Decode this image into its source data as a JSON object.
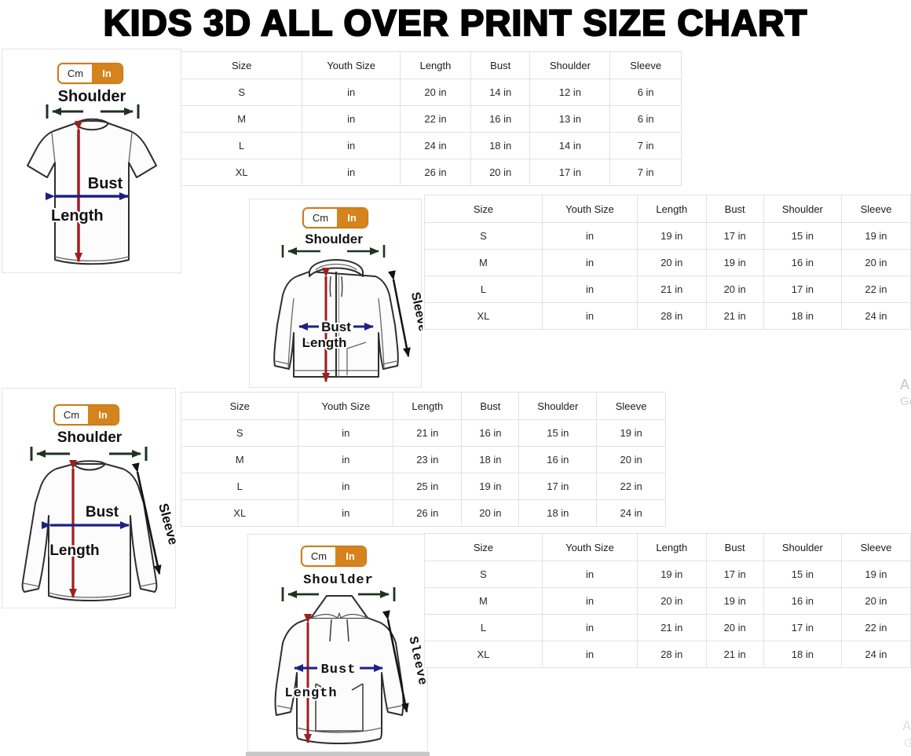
{
  "title": "KIDS 3D ALL OVER PRINT SIZE CHART",
  "unit_toggle": {
    "cm_label": "Cm",
    "in_label": "In",
    "selected": "In"
  },
  "table_headers": [
    "Size",
    "Youth Size",
    "Length",
    "Bust",
    "Shoulder",
    "Sleeve"
  ],
  "diagram_labels": {
    "shoulder": "Shoulder",
    "bust": "Bust",
    "length": "Length",
    "sleeve": "Sleeve"
  },
  "sections": [
    {
      "garment": "kids-tshirt",
      "rows": [
        [
          "S",
          "in",
          "20 in",
          "14 in",
          "12 in",
          "6 in"
        ],
        [
          "M",
          "in",
          "22 in",
          "16 in",
          "13 in",
          "6 in"
        ],
        [
          "L",
          "in",
          "24 in",
          "18 in",
          "14 in",
          "7 in"
        ],
        [
          "XL",
          "in",
          "26 in",
          "20 in",
          "17 in",
          "7 in"
        ]
      ]
    },
    {
      "garment": "kids-zip-hoodie",
      "rows": [
        [
          "S",
          "in",
          "19 in",
          "17 in",
          "15 in",
          "19 in"
        ],
        [
          "M",
          "in",
          "20 in",
          "19 in",
          "16 in",
          "20 in"
        ],
        [
          "L",
          "in",
          "21 in",
          "20 in",
          "17 in",
          "22 in"
        ],
        [
          "XL",
          "in",
          "28 in",
          "21 in",
          "18 in",
          "24 in"
        ]
      ]
    },
    {
      "garment": "kids-long-sleeve-shirt",
      "rows": [
        [
          "S",
          "in",
          "21 in",
          "16 in",
          "15 in",
          "19 in"
        ],
        [
          "M",
          "in",
          "23 in",
          "18 in",
          "16 in",
          "20 in"
        ],
        [
          "L",
          "in",
          "25 in",
          "19 in",
          "17 in",
          "22 in"
        ],
        [
          "XL",
          "in",
          "26 in",
          "20 in",
          "18 in",
          "24 in"
        ]
      ]
    },
    {
      "garment": "kids-pullover-hoodie",
      "rows": [
        [
          "S",
          "in",
          "19 in",
          "17 in",
          "15 in",
          "19 in"
        ],
        [
          "M",
          "in",
          "20 in",
          "19 in",
          "16 in",
          "20 in"
        ],
        [
          "L",
          "in",
          "21 in",
          "20 in",
          "17 in",
          "22 in"
        ],
        [
          "XL",
          "in",
          "28 in",
          "21 in",
          "18 in",
          "24 in"
        ]
      ]
    }
  ],
  "watermark_fragments": [
    "A",
    "Ge",
    "A",
    "G"
  ],
  "colors": {
    "accent_orange": "#d5831c",
    "length_arrow": "#9e1f1f",
    "bust_arrow": "#1c2184",
    "shoulder_arrow": "#1e3320",
    "sleeve_arrow": "#141414",
    "grid_line": "#e2e2e2"
  }
}
